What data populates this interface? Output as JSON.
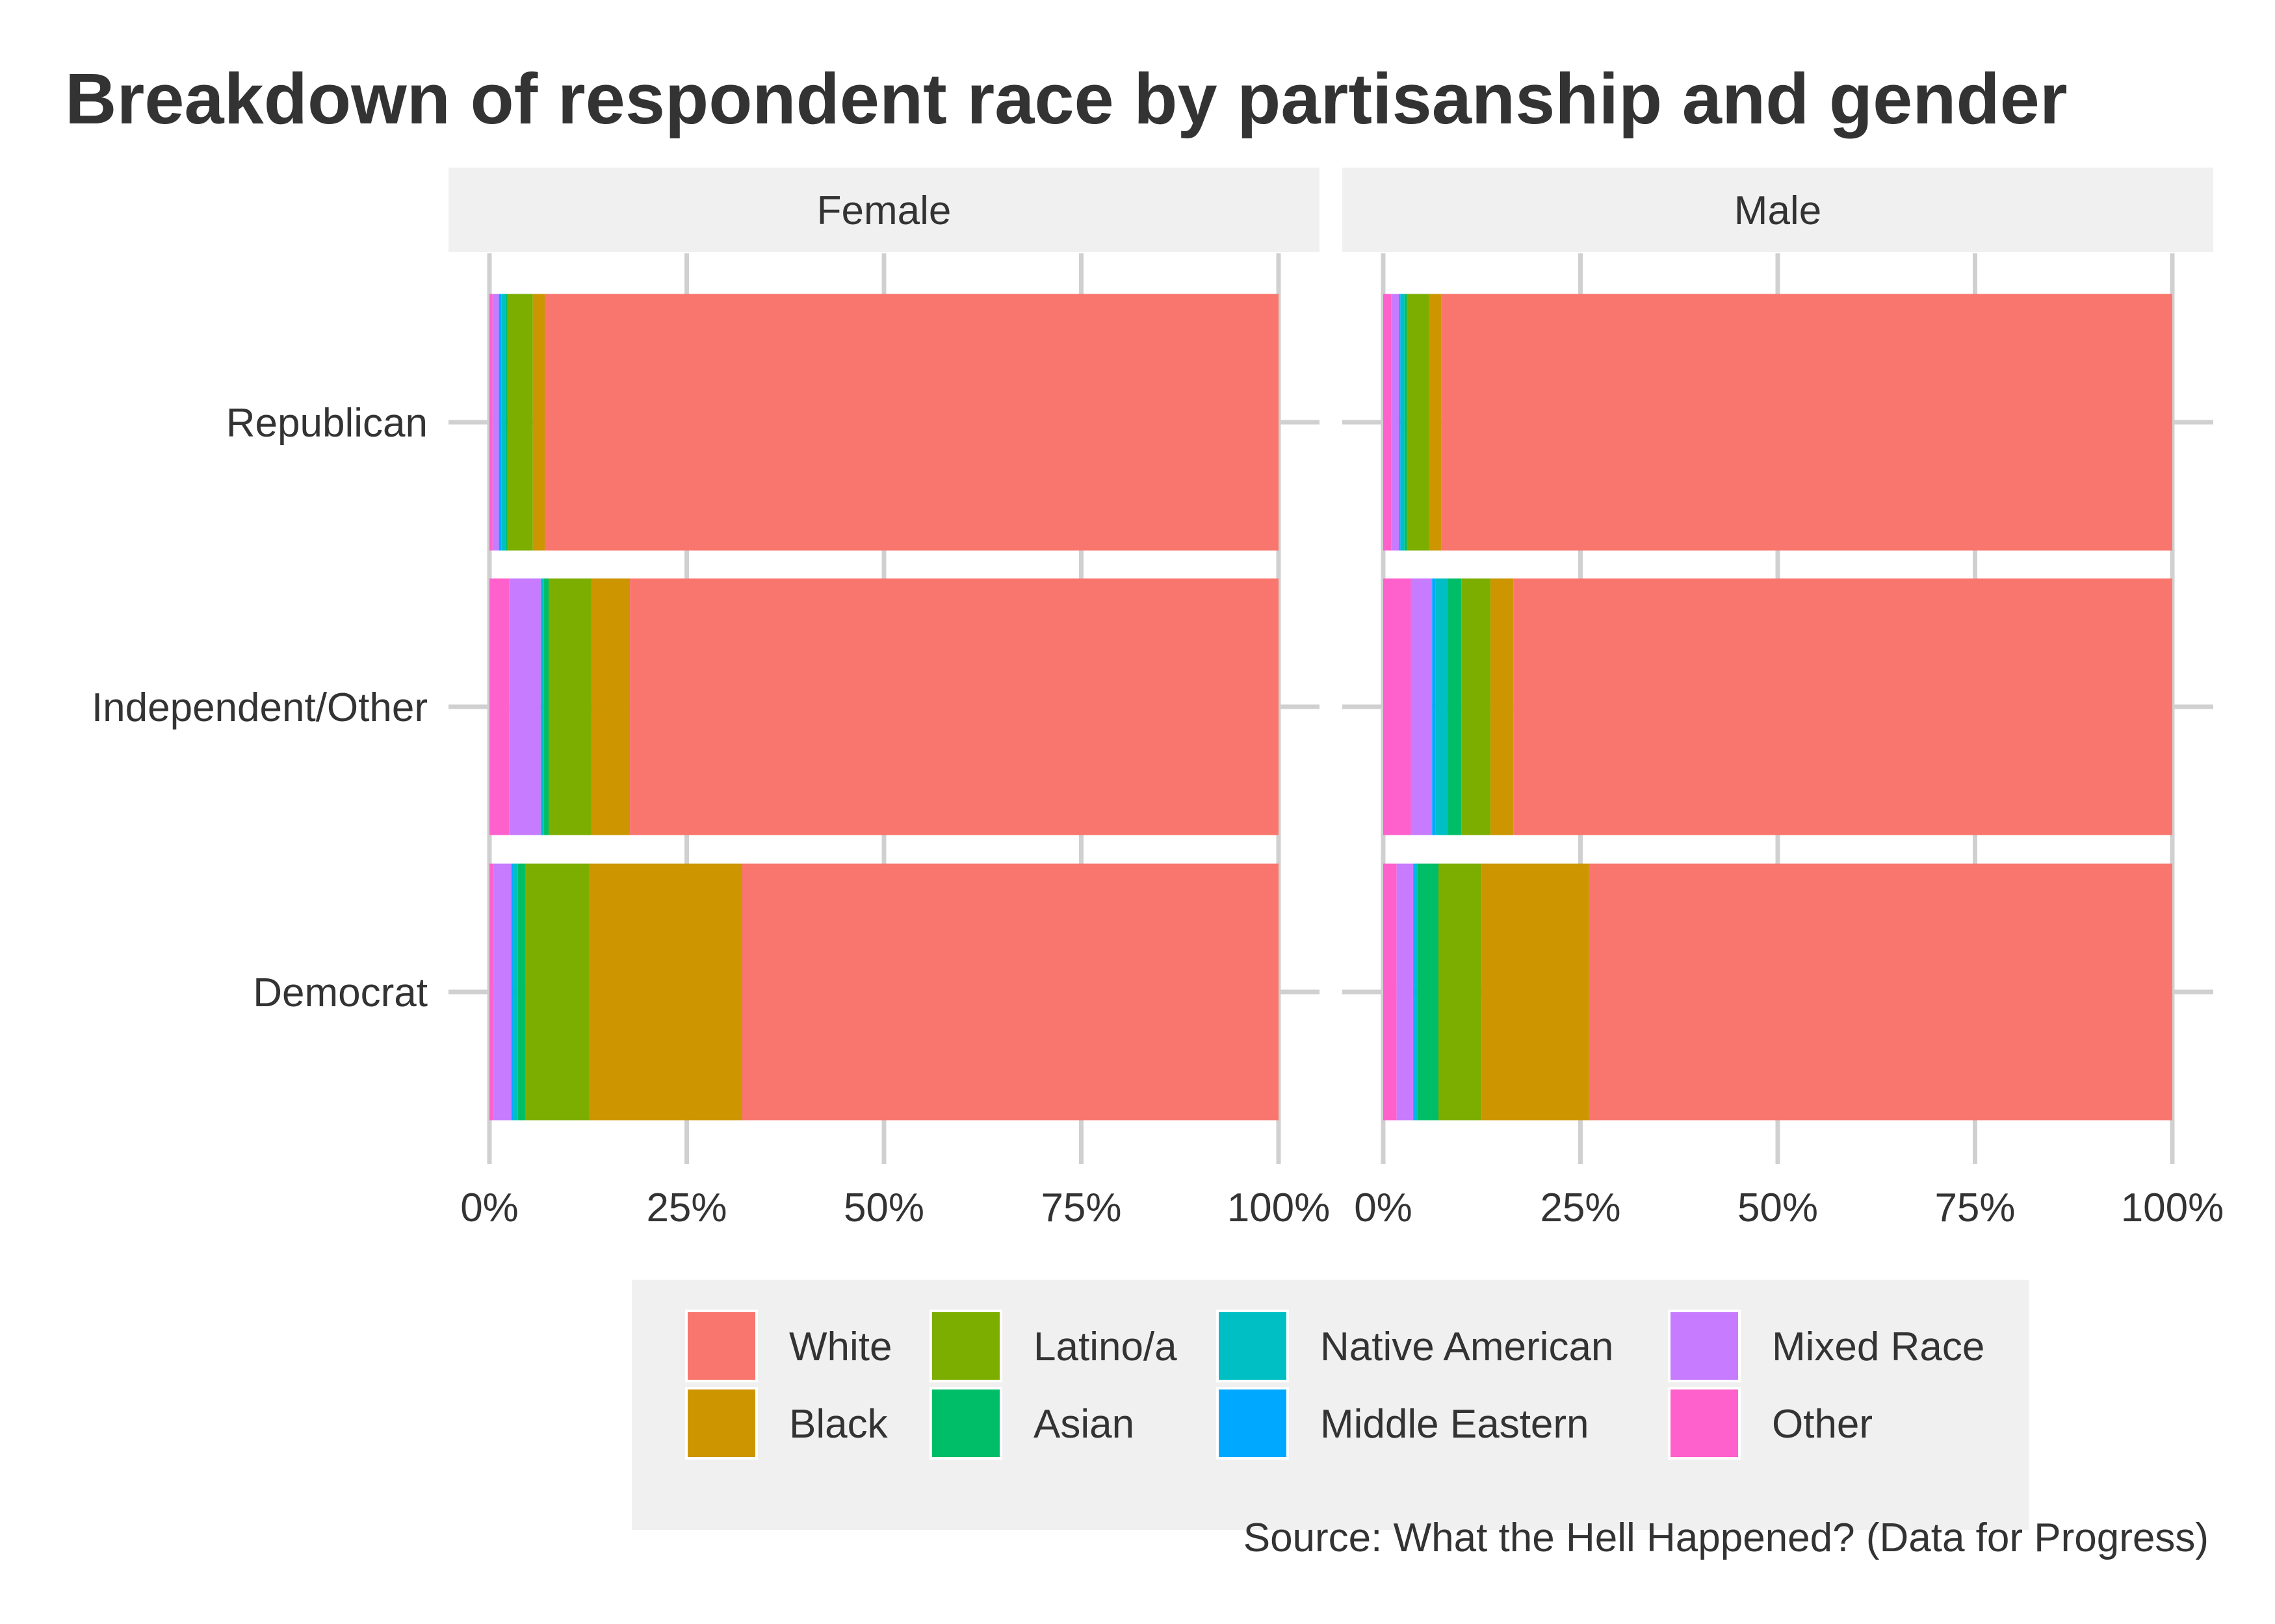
{
  "chart_data": {
    "type": "bar",
    "orientation": "horizontal",
    "stacked": true,
    "title": "Breakdown of respondent race by partisanship and gender",
    "caption": "Source: What the Hell Happened? (Data for Progress)",
    "xlabel": "",
    "ylabel": "",
    "xlim": [
      0,
      100
    ],
    "x_ticks": [
      "0%",
      "25%",
      "50%",
      "75%",
      "100%"
    ],
    "categories": [
      "Republican",
      "Independent/Other",
      "Democrat"
    ],
    "grid": true,
    "legend_position": "bottom",
    "legend": [
      {
        "name": "White",
        "color": "#F8766D"
      },
      {
        "name": "Latino/a",
        "color": "#7CAE00"
      },
      {
        "name": "Native American",
        "color": "#00BFC4"
      },
      {
        "name": "Mixed Race",
        "color": "#C77CFF"
      },
      {
        "name": "Black",
        "color": "#CD9600"
      },
      {
        "name": "Asian",
        "color": "#00BE67"
      },
      {
        "name": "Middle Eastern",
        "color": "#00A9FF"
      },
      {
        "name": "Other",
        "color": "#FF61CC"
      }
    ],
    "stack_order": [
      "Other",
      "Mixed Race",
      "Middle Eastern",
      "Native American",
      "Asian",
      "Latino/a",
      "Black",
      "White"
    ],
    "panels": [
      {
        "name": "Female",
        "series": [
          {
            "name": "Other",
            "values": [
              0.4,
              2.5,
              0.5
            ]
          },
          {
            "name": "Mixed Race",
            "values": [
              0.8,
              4.0,
              2.3
            ]
          },
          {
            "name": "Middle Eastern",
            "values": [
              0.3,
              0.1,
              0.2
            ]
          },
          {
            "name": "Native American",
            "values": [
              0.5,
              0.3,
              0.6
            ]
          },
          {
            "name": "Asian",
            "values": [
              0.3,
              0.6,
              1.0
            ]
          },
          {
            "name": "Latino/a",
            "values": [
              3.2,
              5.5,
              8.1
            ]
          },
          {
            "name": "Black",
            "values": [
              1.5,
              4.8,
              19.3
            ]
          },
          {
            "name": "White",
            "values": [
              93.0,
              82.2,
              68.0
            ]
          }
        ]
      },
      {
        "name": "Male",
        "series": [
          {
            "name": "Other",
            "values": [
              1.0,
              3.5,
              1.7
            ]
          },
          {
            "name": "Mixed Race",
            "values": [
              1.0,
              2.7,
              2.1
            ]
          },
          {
            "name": "Middle Eastern",
            "values": [
              0.2,
              0.4,
              0.2
            ]
          },
          {
            "name": "Native American",
            "values": [
              0.5,
              1.5,
              0.3
            ]
          },
          {
            "name": "Asian",
            "values": [
              0.3,
              1.8,
              2.7
            ]
          },
          {
            "name": "Latino/a",
            "values": [
              2.8,
              3.7,
              5.5
            ]
          },
          {
            "name": "Black",
            "values": [
              1.6,
              2.9,
              13.6
            ]
          },
          {
            "name": "White",
            "values": [
              92.6,
              83.5,
              73.9
            ]
          }
        ]
      }
    ]
  }
}
